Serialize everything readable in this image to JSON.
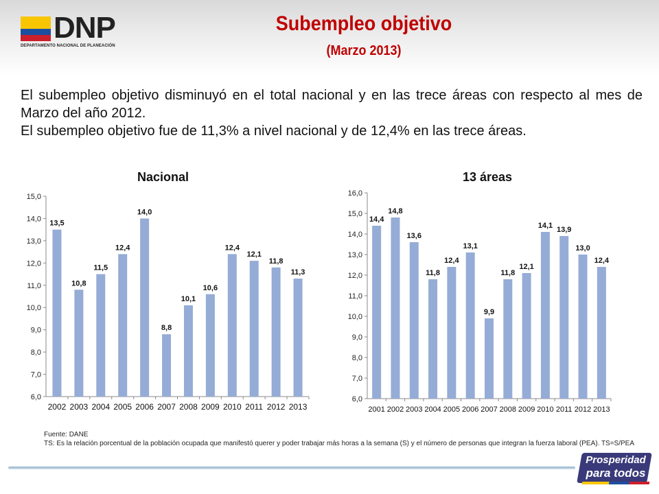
{
  "header": {
    "logo_text": "DNP",
    "logo_subtext": "DEPARTAMENTO NACIONAL DE PLANEACIÓN",
    "title": "Subempleo objetivo",
    "subtitle": "(Marzo 2013)"
  },
  "intro": {
    "p1": "El subempleo objetivo disminuyó en el total nacional y en las trece áreas con respecto al mes de Marzo del año 2012.",
    "p2": "El subempleo objetivo fue de 11,3% a nivel nacional y de 12,4% en las trece áreas."
  },
  "colors": {
    "title_red": "#c00000",
    "bar_blue": "#95acd6",
    "flag_yellow": "#f7c600",
    "flag_blue": "#1d4fa0",
    "flag_red": "#cc1f2b"
  },
  "chart_data": [
    {
      "type": "bar",
      "title": "Nacional",
      "categories": [
        "2002",
        "2003",
        "2004",
        "2005",
        "2006",
        "2007",
        "2008",
        "2009",
        "2010",
        "2011",
        "2012",
        "2013"
      ],
      "values": [
        13.5,
        10.8,
        11.5,
        12.4,
        14.0,
        8.8,
        10.1,
        10.6,
        12.4,
        12.1,
        11.8,
        11.3
      ],
      "value_labels": [
        "13,5",
        "10,8",
        "11,5",
        "12,4",
        "14,0",
        "8,8",
        "10,1",
        "10,6",
        "12,4",
        "12,1",
        "11,8",
        "11,3"
      ],
      "y_ticks": [
        "6,0",
        "7,0",
        "8,0",
        "9,0",
        "10,0",
        "11,0",
        "12,0",
        "13,0",
        "14,0",
        "15,0"
      ],
      "ylim": [
        6,
        15
      ],
      "xlabel": "",
      "ylabel": "",
      "grid": false
    },
    {
      "type": "bar",
      "title": "13 áreas",
      "categories": [
        "2001",
        "2002",
        "2003",
        "2004",
        "2005",
        "2006",
        "2007",
        "2008",
        "2009",
        "2010",
        "2011",
        "2012",
        "2013"
      ],
      "values": [
        14.4,
        14.8,
        13.6,
        11.8,
        12.4,
        13.1,
        9.9,
        11.8,
        12.1,
        14.1,
        13.9,
        13.0,
        12.4
      ],
      "value_labels": [
        "14,4",
        "14,8",
        "13,6",
        "11,8",
        "12,4",
        "13,1",
        "9,9",
        "11,8",
        "12,1",
        "14,1",
        "13,9",
        "13,0",
        "12,4"
      ],
      "y_ticks": [
        "6,0",
        "7,0",
        "8,0",
        "9,0",
        "10,0",
        "11,0",
        "12,0",
        "13,0",
        "14,0",
        "15,0",
        "16,0"
      ],
      "ylim": [
        6,
        16
      ],
      "xlabel": "",
      "ylabel": "",
      "grid": false
    }
  ],
  "footer": {
    "source": "Fuente: DANE",
    "note": "TS: Es la relación porcentual de la población ocupada que manifestó querer y poder trabajar más horas a la semana (S) y el número de personas que integran la fuerza laboral (PEA). TS=S/PEA"
  },
  "badge": {
    "line1": "Prosperidad",
    "line2": "para todos"
  }
}
